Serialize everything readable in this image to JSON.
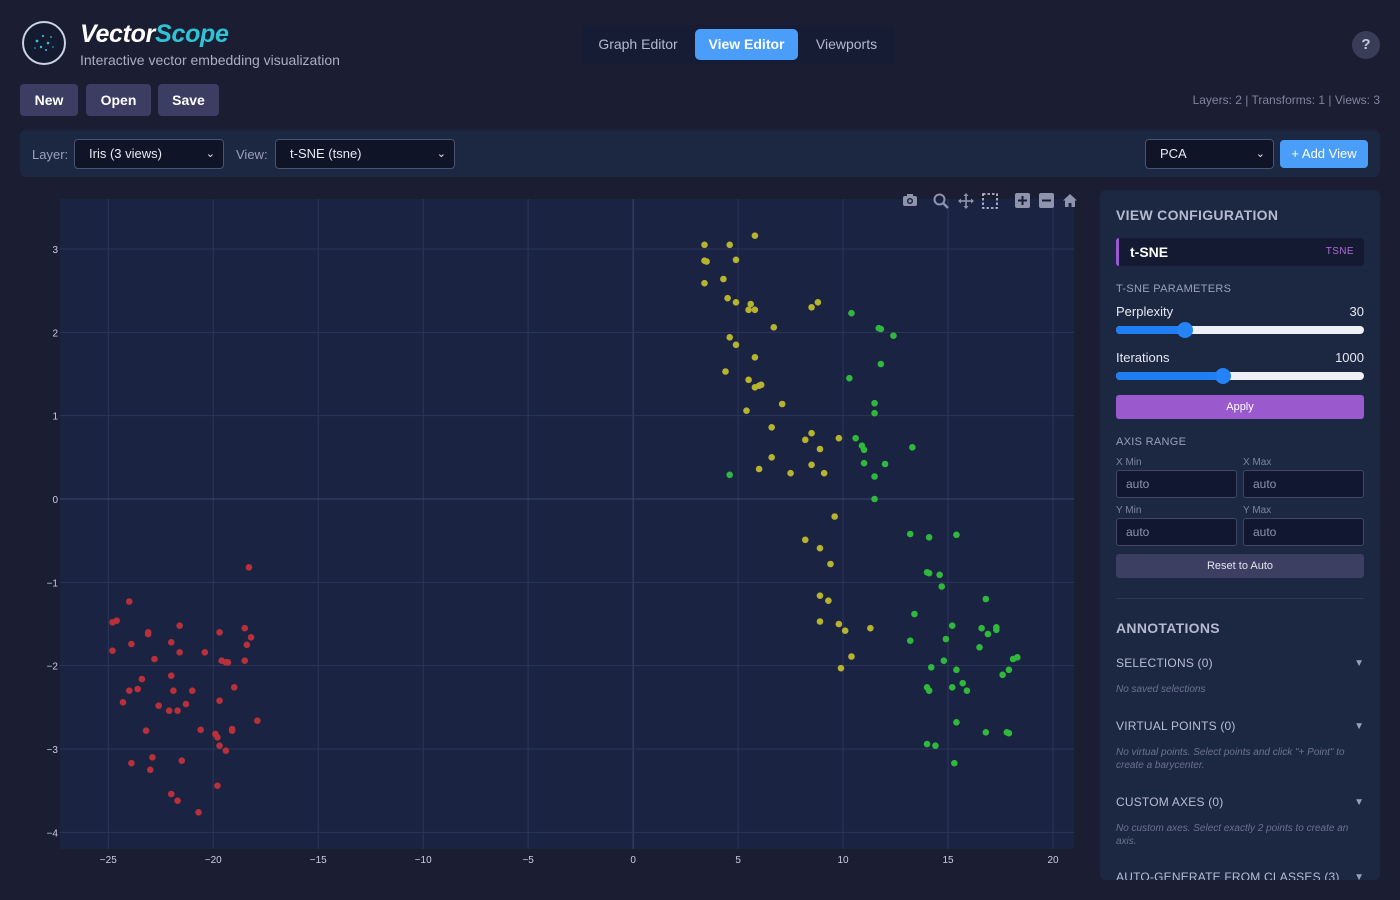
{
  "app": {
    "name_part1": "Vector",
    "name_part2": "Scope",
    "tagline": "Interactive vector embedding visualization",
    "help_label": "?"
  },
  "tabs": [
    {
      "label": "Graph Editor",
      "active": false
    },
    {
      "label": "View Editor",
      "active": true
    },
    {
      "label": "Viewports",
      "active": false
    }
  ],
  "file_buttons": {
    "new": "New",
    "open": "Open",
    "save": "Save"
  },
  "stats": "Layers: 2 | Transforms: 1 | Views: 3",
  "controls": {
    "layer_label": "Layer:",
    "layer_value": "Iris (3 views)",
    "view_label": "View:",
    "view_value": "t-SNE (tsne)",
    "method_value": "PCA",
    "add_view": "+ Add View"
  },
  "colors": {
    "accent": "#4a9df8",
    "brand_accent": "#2ec4d6",
    "apply": "#9a59cc",
    "cluster_red": "#b8303a",
    "cluster_yellow": "#b6b42e",
    "cluster_green": "#2fb83c"
  },
  "toolbar_icons": [
    "camera-icon",
    "zoom-icon",
    "pan-icon",
    "box-select-icon",
    "zoom-in-icon",
    "zoom-out-icon",
    "home-icon"
  ],
  "panel": {
    "title": "VIEW CONFIGURATION",
    "view_name": "t-SNE",
    "view_type": "TSNE",
    "params_heading": "T-SNE PARAMETERS",
    "perplexity_label": "Perplexity",
    "perplexity_value": "30",
    "perplexity_fraction": 0.28,
    "iterations_label": "Iterations",
    "iterations_value": "1000",
    "iterations_fraction": 0.43,
    "apply_label": "Apply",
    "axis_heading": "AXIS RANGE",
    "xmin_label": "X Min",
    "xmax_label": "X Max",
    "ymin_label": "Y Min",
    "ymax_label": "Y Max",
    "xmin": "auto",
    "xmax": "auto",
    "ymin": "auto",
    "ymax": "auto",
    "reset_label": "Reset to Auto"
  },
  "annotations": {
    "title": "ANNOTATIONS",
    "selections_label": "SELECTIONS (0)",
    "selections_empty": "No saved selections",
    "virtual_label": "VIRTUAL POINTS (0)",
    "virtual_empty": "No virtual points. Select points and click \"+ Point\" to create a barycenter.",
    "axes_label": "CUSTOM AXES (0)",
    "axes_empty": "No custom axes. Select exactly 2 points to create an axis.",
    "autogen_label": "AUTO-GENERATE FROM CLASSES (3)",
    "chevron": "▼"
  },
  "chart_data": {
    "type": "scatter",
    "xlim": [
      -27.3,
      21.0
    ],
    "ylim": [
      -4.2,
      3.6
    ],
    "xticks": [
      -25,
      -20,
      -15,
      -10,
      -5,
      0,
      5,
      10,
      15,
      20
    ],
    "yticks": [
      -4,
      -3,
      -2,
      -1,
      0,
      1,
      2,
      3
    ],
    "xtick_labels": [
      "−25",
      "−20",
      "−15",
      "−10",
      "−5",
      "0",
      "5",
      "10",
      "15",
      "20"
    ],
    "ytick_labels": [
      "−4",
      "−3",
      "−2",
      "−1",
      "0",
      "1",
      "2",
      "3"
    ],
    "grid": true,
    "series": [
      {
        "color": "#b8303a",
        "points": [
          [
            -18.3,
            -0.82
          ],
          [
            -24.0,
            -1.23
          ],
          [
            -24.8,
            -1.48
          ],
          [
            -24.6,
            -1.46
          ],
          [
            -23.9,
            -1.74
          ],
          [
            -23.1,
            -1.62
          ],
          [
            -23.1,
            -1.6
          ],
          [
            -21.6,
            -1.52
          ],
          [
            -22.0,
            -1.72
          ],
          [
            -21.6,
            -1.84
          ],
          [
            -20.4,
            -1.84
          ],
          [
            -19.7,
            -1.6
          ],
          [
            -19.6,
            -1.94
          ],
          [
            -19.3,
            -1.96
          ],
          [
            -19.4,
            -1.96
          ],
          [
            -18.5,
            -1.55
          ],
          [
            -18.4,
            -1.75
          ],
          [
            -18.2,
            -1.66
          ],
          [
            -18.5,
            -1.94
          ],
          [
            -24.8,
            -1.82
          ],
          [
            -22.8,
            -1.92
          ],
          [
            -23.4,
            -2.16
          ],
          [
            -22.0,
            -2.12
          ],
          [
            -24.0,
            -2.3
          ],
          [
            -23.6,
            -2.28
          ],
          [
            -24.3,
            -2.44
          ],
          [
            -21.9,
            -2.3
          ],
          [
            -21.0,
            -2.3
          ],
          [
            -19.0,
            -2.26
          ],
          [
            -21.3,
            -2.46
          ],
          [
            -22.6,
            -2.48
          ],
          [
            -22.1,
            -2.54
          ],
          [
            -21.7,
            -2.54
          ],
          [
            -19.7,
            -2.42
          ],
          [
            -23.2,
            -2.78
          ],
          [
            -20.6,
            -2.77
          ],
          [
            -19.9,
            -2.82
          ],
          [
            -19.8,
            -2.86
          ],
          [
            -19.1,
            -2.78
          ],
          [
            -19.1,
            -2.76
          ],
          [
            -17.9,
            -2.66
          ],
          [
            -19.7,
            -2.96
          ],
          [
            -19.4,
            -3.02
          ],
          [
            -23.9,
            -3.17
          ],
          [
            -22.9,
            -3.1
          ],
          [
            -23.0,
            -3.25
          ],
          [
            -21.5,
            -3.14
          ],
          [
            -22.0,
            -3.54
          ],
          [
            -21.7,
            -3.62
          ],
          [
            -19.8,
            -3.44
          ],
          [
            -20.7,
            -3.76
          ]
        ]
      },
      {
        "color": "#b6b42e",
        "points": [
          [
            3.4,
            3.05
          ],
          [
            4.6,
            3.05
          ],
          [
            5.8,
            3.16
          ],
          [
            3.4,
            2.86
          ],
          [
            3.5,
            2.85
          ],
          [
            4.9,
            2.87
          ],
          [
            4.3,
            2.64
          ],
          [
            3.4,
            2.59
          ],
          [
            4.5,
            2.41
          ],
          [
            4.9,
            2.36
          ],
          [
            5.6,
            2.34
          ],
          [
            5.5,
            2.27
          ],
          [
            5.8,
            2.27
          ],
          [
            8.5,
            2.3
          ],
          [
            8.8,
            2.36
          ],
          [
            6.7,
            2.06
          ],
          [
            4.6,
            1.94
          ],
          [
            4.9,
            1.85
          ],
          [
            5.8,
            1.7
          ],
          [
            4.4,
            1.53
          ],
          [
            5.5,
            1.43
          ],
          [
            6.1,
            1.37
          ],
          [
            5.8,
            1.34
          ],
          [
            6.0,
            1.36
          ],
          [
            7.1,
            1.14
          ],
          [
            5.4,
            1.06
          ],
          [
            6.6,
            0.86
          ],
          [
            8.2,
            0.71
          ],
          [
            8.5,
            0.79
          ],
          [
            8.9,
            0.6
          ],
          [
            9.8,
            0.73
          ],
          [
            6.6,
            0.5
          ],
          [
            6.0,
            0.36
          ],
          [
            7.5,
            0.31
          ],
          [
            8.5,
            0.41
          ],
          [
            9.1,
            0.31
          ],
          [
            9.6,
            -0.21
          ],
          [
            8.2,
            -0.49
          ],
          [
            8.9,
            -0.59
          ],
          [
            9.4,
            -0.78
          ],
          [
            8.9,
            -1.16
          ],
          [
            9.3,
            -1.22
          ],
          [
            8.9,
            -1.47
          ],
          [
            9.8,
            -1.5
          ],
          [
            10.1,
            -1.58
          ],
          [
            11.3,
            -1.55
          ],
          [
            10.4,
            -1.89
          ],
          [
            9.9,
            -2.03
          ]
        ]
      },
      {
        "color": "#2fb83c",
        "points": [
          [
            10.4,
            2.23
          ],
          [
            11.7,
            2.05
          ],
          [
            11.8,
            2.04
          ],
          [
            12.4,
            1.96
          ],
          [
            11.8,
            1.62
          ],
          [
            10.3,
            1.45
          ],
          [
            11.5,
            1.15
          ],
          [
            11.5,
            1.03
          ],
          [
            10.6,
            0.73
          ],
          [
            10.9,
            0.64
          ],
          [
            11.0,
            0.59
          ],
          [
            13.3,
            0.62
          ],
          [
            11.0,
            0.43
          ],
          [
            11.5,
            0.27
          ],
          [
            12.0,
            0.42
          ],
          [
            11.5,
            0.0
          ],
          [
            4.6,
            0.29
          ],
          [
            13.2,
            -0.42
          ],
          [
            14.1,
            -0.46
          ],
          [
            15.4,
            -0.43
          ],
          [
            14.0,
            -0.88
          ],
          [
            14.1,
            -0.89
          ],
          [
            14.6,
            -0.91
          ],
          [
            14.7,
            -1.05
          ],
          [
            16.8,
            -1.2
          ],
          [
            13.4,
            -1.38
          ],
          [
            15.2,
            -1.52
          ],
          [
            16.6,
            -1.55
          ],
          [
            17.3,
            -1.54
          ],
          [
            17.3,
            -1.57
          ],
          [
            14.9,
            -1.68
          ],
          [
            16.9,
            -1.62
          ],
          [
            13.2,
            -1.7
          ],
          [
            16.5,
            -1.78
          ],
          [
            14.8,
            -1.94
          ],
          [
            15.4,
            -2.05
          ],
          [
            14.2,
            -2.02
          ],
          [
            17.9,
            -2.05
          ],
          [
            18.1,
            -1.92
          ],
          [
            18.3,
            -1.9
          ],
          [
            17.6,
            -2.11
          ],
          [
            15.7,
            -2.21
          ],
          [
            14.0,
            -2.26
          ],
          [
            14.1,
            -2.3
          ],
          [
            15.2,
            -2.26
          ],
          [
            15.9,
            -2.3
          ],
          [
            15.4,
            -2.68
          ],
          [
            16.8,
            -2.8
          ],
          [
            17.8,
            -2.8
          ],
          [
            17.9,
            -2.81
          ],
          [
            14.0,
            -2.94
          ],
          [
            14.4,
            -2.96
          ],
          [
            15.3,
            -3.17
          ]
        ]
      }
    ]
  }
}
